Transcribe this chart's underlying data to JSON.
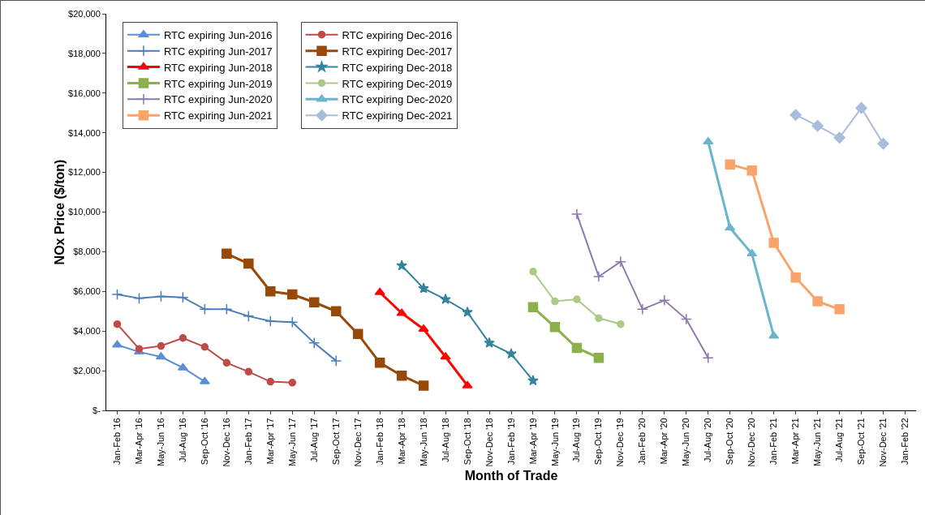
{
  "chart_data": {
    "type": "line",
    "xlabel": "Month of Trade",
    "ylabel": "NOx Price ($/ton)",
    "categories": [
      "Jan-Feb '16",
      "Mar-Apr '16",
      "May-Jun '16",
      "Jul-Aug '16",
      "Sep-Oct '16",
      "Nov-Dec '16",
      "Jan-Feb '17",
      "Mar-Apr '17",
      "May-Jun '17",
      "Jul-Aug '17",
      "Sep-Oct '17",
      "Nov-Dec '17",
      "Jan-Feb '18",
      "Mar-Apr '18",
      "May-Jun '18",
      "Jul-Aug '18",
      "Sep-Oct '18",
      "Nov-Dec '18",
      "Jan-Feb '19",
      "Mar-Apr '19",
      "May-Jun '19",
      "Jul-Aug '19",
      "Sep-Oct '19",
      "Nov-Dec '19",
      "Jan-Feb '20",
      "Mar-Apr '20",
      "May-Jun '20",
      "Jul-Aug '20",
      "Sep-Oct '20",
      "Nov-Dec '20",
      "Jan-Feb '21",
      "Mar-Apr '21",
      "May-Jun '21",
      "Jul-Aug '21",
      "Sep-Oct '21",
      "Nov-Dec '21",
      "Jan-Feb '22"
    ],
    "ylim": [
      0,
      20000
    ],
    "yticks": [
      {
        "value": 0,
        "label": "$-"
      },
      {
        "value": 2000,
        "label": "$2,000"
      },
      {
        "value": 4000,
        "label": "$4,000"
      },
      {
        "value": 6000,
        "label": "$6,000"
      },
      {
        "value": 8000,
        "label": "$8,000"
      },
      {
        "value": 10000,
        "label": "$10,000"
      },
      {
        "value": 12000,
        "label": "$12,000"
      },
      {
        "value": 14000,
        "label": "$14,000"
      },
      {
        "value": 16000,
        "label": "$16,000"
      },
      {
        "value": 18000,
        "label": "$18,000"
      },
      {
        "value": 20000,
        "label": "$20,000"
      }
    ],
    "grid": false,
    "legend": "top left",
    "line_style": "solid",
    "series": [
      {
        "name": "RTC expiring Jun-2016",
        "color": "#5b8fd3",
        "marker": "triangle",
        "values": [
          3300,
          2950,
          2700,
          2150,
          1450,
          null,
          null,
          null,
          null,
          null,
          null,
          null,
          null,
          null,
          null,
          null,
          null,
          null,
          null,
          null,
          null,
          null,
          null,
          null,
          null,
          null,
          null,
          null,
          null,
          null,
          null,
          null,
          null,
          null,
          null,
          null,
          null
        ]
      },
      {
        "name": "RTC expiring Dec-2016",
        "color": "#be4b48",
        "marker": "circle",
        "values": [
          4350,
          3100,
          3250,
          3650,
          3200,
          2400,
          1950,
          1450,
          1400,
          null,
          null,
          null,
          null,
          null,
          null,
          null,
          null,
          null,
          null,
          null,
          null,
          null,
          null,
          null,
          null,
          null,
          null,
          null,
          null,
          null,
          null,
          null,
          null,
          null,
          null,
          null,
          null
        ]
      },
      {
        "name": "RTC expiring Jun-2017",
        "color": "#4a7ebb",
        "marker": "cross",
        "values": [
          5850,
          5650,
          5750,
          5700,
          5100,
          5100,
          4750,
          4500,
          4450,
          3400,
          2500,
          null,
          null,
          null,
          null,
          null,
          null,
          null,
          null,
          null,
          null,
          null,
          null,
          null,
          null,
          null,
          null,
          null,
          null,
          null,
          null,
          null,
          null,
          null,
          null,
          null,
          null
        ]
      },
      {
        "name": "RTC expiring Dec-2017",
        "color": "#984807",
        "marker": "square",
        "values": [
          null,
          null,
          null,
          null,
          null,
          7900,
          7400,
          6000,
          5850,
          5450,
          5000,
          3850,
          2400,
          1750,
          1250,
          null,
          null,
          null,
          null,
          null,
          null,
          null,
          null,
          null,
          null,
          null,
          null,
          null,
          null,
          null,
          null,
          null,
          null,
          null,
          null,
          null,
          null
        ]
      },
      {
        "name": "RTC expiring Jun-2018",
        "color": "#ff0000",
        "marker": "triangle",
        "values": [
          null,
          null,
          null,
          null,
          null,
          null,
          null,
          null,
          null,
          null,
          null,
          null,
          5950,
          4900,
          4100,
          2700,
          1250,
          null,
          null,
          null,
          null,
          null,
          null,
          null,
          null,
          null,
          null,
          null,
          null,
          null,
          null,
          null,
          null,
          null,
          null,
          null,
          null
        ]
      },
      {
        "name": "RTC expiring Dec-2018",
        "color": "#31859c",
        "marker": "star",
        "values": [
          null,
          null,
          null,
          null,
          null,
          null,
          null,
          null,
          null,
          null,
          null,
          null,
          null,
          7300,
          6150,
          5600,
          4950,
          3400,
          2850,
          1500,
          null,
          null,
          null,
          null,
          null,
          null,
          null,
          null,
          null,
          null,
          null,
          null,
          null,
          null,
          null,
          null,
          null
        ]
      },
      {
        "name": "RTC expiring Jun-2019",
        "color": "#8cb04c",
        "marker": "square",
        "values": [
          null,
          null,
          null,
          null,
          null,
          null,
          null,
          null,
          null,
          null,
          null,
          null,
          null,
          null,
          null,
          null,
          null,
          null,
          null,
          5200,
          4200,
          3150,
          2650,
          null,
          null,
          null,
          null,
          null,
          null,
          null,
          null,
          null,
          null,
          null,
          null,
          null,
          null
        ]
      },
      {
        "name": "RTC expiring Dec-2019",
        "color": "#adc987",
        "marker": "circle",
        "values": [
          null,
          null,
          null,
          null,
          null,
          null,
          null,
          null,
          null,
          null,
          null,
          null,
          null,
          null,
          null,
          null,
          null,
          null,
          null,
          7000,
          5500,
          5600,
          4650,
          4350,
          null,
          null,
          null,
          null,
          null,
          null,
          null,
          null,
          null,
          null,
          null,
          null,
          null
        ]
      },
      {
        "name": "RTC expiring Jun-2020",
        "color": "#8c79ae",
        "marker": "cross",
        "values": [
          null,
          null,
          null,
          null,
          null,
          null,
          null,
          null,
          null,
          null,
          null,
          null,
          null,
          null,
          null,
          null,
          null,
          null,
          null,
          null,
          null,
          9900,
          6750,
          7500,
          5100,
          5550,
          4600,
          2650,
          null,
          null,
          null,
          null,
          null,
          null,
          null,
          null,
          null
        ]
      },
      {
        "name": "RTC expiring Dec-2020",
        "color": "#6ab4cc",
        "marker": "triangle",
        "values": [
          null,
          null,
          null,
          null,
          null,
          null,
          null,
          null,
          null,
          null,
          null,
          null,
          null,
          null,
          null,
          null,
          null,
          null,
          null,
          null,
          null,
          null,
          null,
          null,
          null,
          null,
          null,
          13550,
          9200,
          7900,
          3750,
          null,
          null,
          null,
          null,
          null,
          null
        ]
      },
      {
        "name": "RTC expiring Jun-2021",
        "color": "#f9a46b",
        "marker": "square",
        "values": [
          null,
          null,
          null,
          null,
          null,
          null,
          null,
          null,
          null,
          null,
          null,
          null,
          null,
          null,
          null,
          null,
          null,
          null,
          null,
          null,
          null,
          null,
          null,
          null,
          null,
          null,
          null,
          null,
          12400,
          12100,
          8450,
          6700,
          5500,
          5100,
          null,
          null,
          null
        ]
      },
      {
        "name": "RTC expiring Dec-2021",
        "color": "#a9bcdc",
        "marker": "diamond",
        "values": [
          null,
          null,
          null,
          null,
          null,
          null,
          null,
          null,
          null,
          null,
          null,
          null,
          null,
          null,
          null,
          null,
          null,
          null,
          null,
          null,
          null,
          null,
          null,
          null,
          null,
          null,
          null,
          null,
          null,
          null,
          null,
          14900,
          14350,
          13750,
          15250,
          13450,
          null
        ]
      }
    ]
  }
}
